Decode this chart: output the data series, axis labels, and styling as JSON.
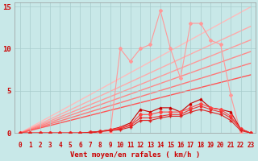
{
  "title": "",
  "xlabel": "Vent moyen/en rafales ( km/h )",
  "bg_color": "#c8e8e8",
  "grid_color": "#a8cccc",
  "xlim": [
    -0.5,
    23.5
  ],
  "ylim": [
    0,
    15.5
  ],
  "yticks": [
    0,
    5,
    10,
    15
  ],
  "xticks": [
    0,
    1,
    2,
    3,
    4,
    5,
    6,
    7,
    8,
    9,
    10,
    11,
    12,
    13,
    14,
    15,
    16,
    17,
    18,
    19,
    20,
    21,
    22,
    23
  ],
  "straight_lines": [
    {
      "slope": 0.65,
      "color": "#ffbbbb",
      "lw": 1.0
    },
    {
      "slope": 0.55,
      "color": "#ffaaaa",
      "lw": 1.0
    },
    {
      "slope": 0.48,
      "color": "#ff9999",
      "lw": 1.0
    },
    {
      "slope": 0.42,
      "color": "#ff8888",
      "lw": 1.0
    },
    {
      "slope": 0.36,
      "color": "#ff7777",
      "lw": 1.0
    },
    {
      "slope": 0.3,
      "color": "#ff5555",
      "lw": 1.0
    }
  ],
  "data_lines": [
    {
      "x": [
        0,
        1,
        2,
        3,
        4,
        5,
        6,
        7,
        8,
        9,
        10,
        11,
        12,
        13,
        14,
        15,
        16,
        17,
        18,
        19,
        20,
        21,
        22,
        23
      ],
      "y": [
        0,
        0,
        0,
        0,
        0,
        0,
        0,
        0,
        0,
        0,
        10.0,
        8.5,
        10.0,
        10.5,
        14.5,
        10.0,
        6.5,
        13.0,
        13.0,
        11.0,
        10.5,
        4.5,
        0,
        0
      ],
      "color": "#ff9999",
      "lw": 0.8,
      "marker": "D",
      "ms": 2.0
    },
    {
      "x": [
        0,
        1,
        2,
        3,
        4,
        5,
        6,
        7,
        8,
        9,
        10,
        11,
        12,
        13,
        14,
        15,
        16,
        17,
        18,
        19,
        20,
        21,
        22,
        23
      ],
      "y": [
        0,
        0,
        0,
        0,
        0,
        0,
        0,
        0,
        0.2,
        0.4,
        0.7,
        1.2,
        2.8,
        2.5,
        3.0,
        3.0,
        2.5,
        3.5,
        4.0,
        3.0,
        2.8,
        2.5,
        0.5,
        0
      ],
      "color": "#cc0000",
      "lw": 0.8,
      "marker": "^",
      "ms": 2.0
    },
    {
      "x": [
        0,
        1,
        2,
        3,
        4,
        5,
        6,
        7,
        8,
        9,
        10,
        11,
        12,
        13,
        14,
        15,
        16,
        17,
        18,
        19,
        20,
        21,
        22,
        23
      ],
      "y": [
        0,
        0,
        0,
        0,
        0,
        0,
        0,
        0.1,
        0.2,
        0.4,
        0.6,
        1.0,
        2.2,
        2.2,
        2.5,
        2.5,
        2.5,
        3.0,
        3.5,
        3.0,
        2.8,
        2.0,
        0.5,
        0
      ],
      "color": "#ff4444",
      "lw": 0.8,
      "marker": "D",
      "ms": 2.0
    },
    {
      "x": [
        0,
        1,
        2,
        3,
        4,
        5,
        6,
        7,
        8,
        9,
        10,
        11,
        12,
        13,
        14,
        15,
        16,
        17,
        18,
        19,
        20,
        21,
        22,
        23
      ],
      "y": [
        0,
        0,
        0,
        0,
        0,
        0,
        0,
        0.1,
        0.2,
        0.3,
        0.5,
        0.9,
        1.8,
        1.8,
        2.0,
        2.2,
        2.2,
        2.8,
        3.2,
        2.8,
        2.5,
        1.8,
        0.5,
        0
      ],
      "color": "#ee3333",
      "lw": 0.8,
      "marker": "s",
      "ms": 1.8
    },
    {
      "x": [
        0,
        1,
        2,
        3,
        4,
        5,
        6,
        7,
        8,
        9,
        10,
        11,
        12,
        13,
        14,
        15,
        16,
        17,
        18,
        19,
        20,
        21,
        22,
        23
      ],
      "y": [
        0,
        0,
        0,
        0,
        0,
        0,
        0,
        0.1,
        0.2,
        0.3,
        0.4,
        0.7,
        1.5,
        1.5,
        1.8,
        2.0,
        2.0,
        2.5,
        2.8,
        2.5,
        2.2,
        1.5,
        0.3,
        0
      ],
      "color": "#dd2222",
      "lw": 0.8,
      "marker": "+",
      "ms": 2.5
    }
  ],
  "arrow_color": "#cc0000",
  "xlabel_color": "#cc0000",
  "xlabel_fontsize": 6.5,
  "tick_color": "#cc0000",
  "tick_fontsize": 5.5,
  "ytick_fontsize": 6.5
}
